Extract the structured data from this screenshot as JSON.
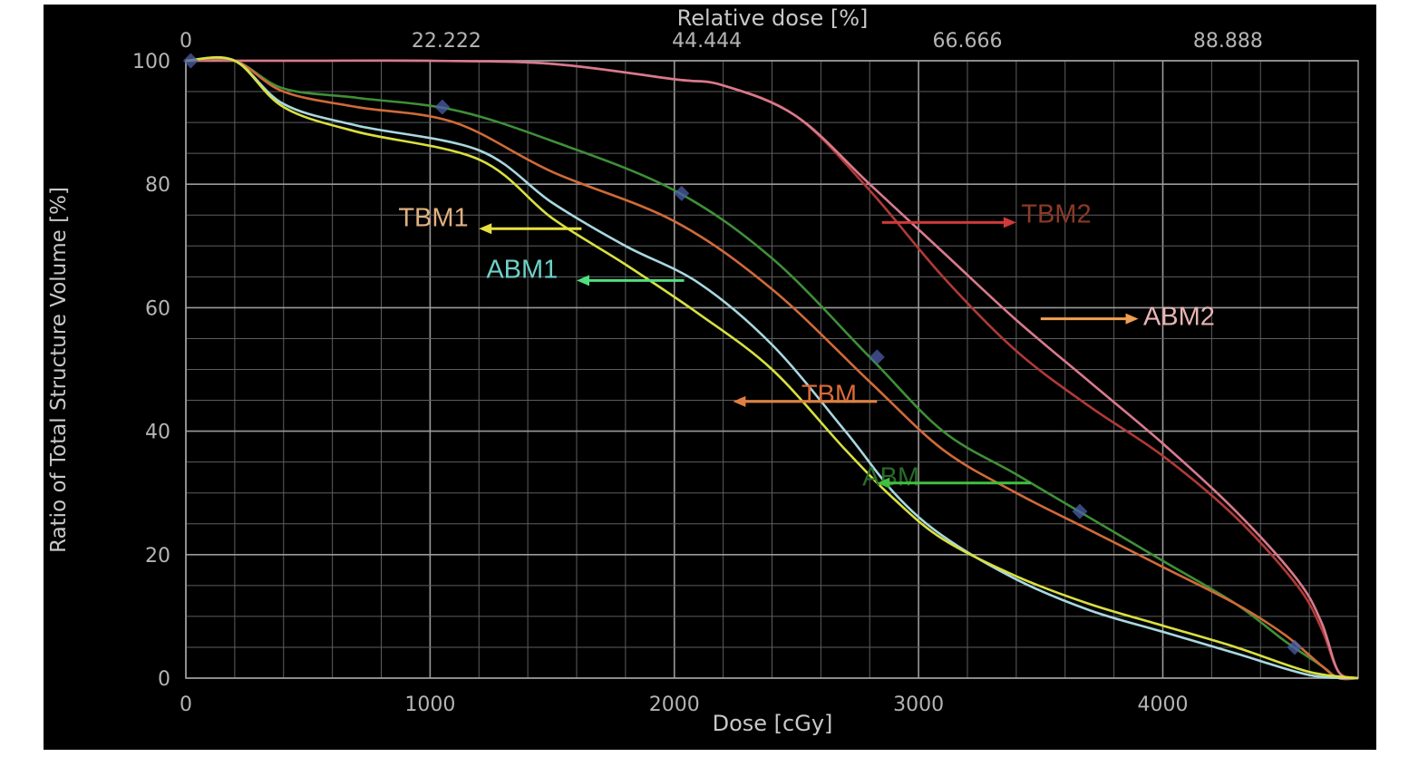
{
  "chart_data": {
    "type": "line",
    "title": "",
    "xlabel": "Dose [cGy]",
    "ylabel": "Ratio of Total Structure Volume [%]",
    "x2label": "Relative dose [%]",
    "xlim": [
      0,
      4800
    ],
    "ylim": [
      0,
      100
    ],
    "x_ticks": [
      0,
      1000,
      2000,
      3000,
      4000
    ],
    "y_ticks": [
      0,
      20,
      40,
      60,
      80,
      100
    ],
    "x2_ticks": [
      {
        "value": 0,
        "label": "0"
      },
      {
        "value": 1066.7,
        "label": "22.222"
      },
      {
        "value": 2133.3,
        "label": "44.444"
      },
      {
        "value": 3200,
        "label": "66.666"
      },
      {
        "value": 4266.7,
        "label": "88.888"
      }
    ],
    "grid": true,
    "background": "#000000",
    "series": [
      {
        "name": "TBM2",
        "color": "#b03a36",
        "x": [
          0,
          200,
          500,
          1000,
          1500,
          2000,
          2200,
          2500,
          2800,
          3100,
          3400,
          3700,
          4000,
          4300,
          4550,
          4650,
          4720,
          4800
        ],
        "y": [
          100,
          100,
          100,
          100,
          99.5,
          97,
          96,
          91,
          79,
          65,
          53,
          44,
          36,
          26,
          15,
          8,
          1,
          0
        ]
      },
      {
        "name": "ABM2",
        "color": "#d87a8e",
        "x": [
          0,
          200,
          500,
          1000,
          1500,
          2000,
          2200,
          2500,
          2800,
          3100,
          3400,
          3700,
          4000,
          4300,
          4550,
          4650,
          4720,
          4800
        ],
        "y": [
          100,
          100,
          100,
          100,
          99.5,
          97,
          96,
          91,
          80,
          69,
          58,
          48,
          38,
          27,
          16,
          9,
          1,
          0
        ]
      },
      {
        "name": "ABM",
        "color": "#3f8f38",
        "x": [
          0,
          200,
          400,
          700,
          1100,
          1500,
          2000,
          2400,
          2800,
          3100,
          3400,
          3700,
          4000,
          4300,
          4500,
          4650,
          4720,
          4800
        ],
        "y": [
          100,
          100,
          95.5,
          94,
          92,
          87,
          79,
          68,
          52,
          40,
          33,
          26,
          19,
          12,
          6,
          2,
          0,
          0
        ]
      },
      {
        "name": "TBM",
        "color": "#d06a38",
        "x": [
          0,
          200,
          400,
          700,
          1100,
          1500,
          2000,
          2400,
          2800,
          3100,
          3400,
          3700,
          4000,
          4300,
          4500,
          4650,
          4720,
          4800
        ],
        "y": [
          100,
          100,
          95,
          92.5,
          90,
          82,
          74,
          63,
          48,
          37,
          30,
          24,
          18,
          12,
          7,
          2,
          0,
          0
        ]
      },
      {
        "name": "ABM1",
        "color": "#a8d8e0",
        "x": [
          0,
          200,
          400,
          700,
          1200,
          1500,
          1800,
          2100,
          2400,
          2700,
          2900,
          3100,
          3400,
          3700,
          4000,
          4300,
          4600,
          4800
        ],
        "y": [
          100,
          100,
          93,
          89.5,
          85.5,
          77,
          70,
          64,
          54,
          40,
          30,
          23,
          16,
          11,
          7.5,
          4,
          0.5,
          0
        ]
      },
      {
        "name": "TBM1",
        "color": "#d8e040",
        "x": [
          0,
          200,
          400,
          700,
          1200,
          1500,
          1800,
          2100,
          2400,
          2700,
          2900,
          3100,
          3400,
          3700,
          4000,
          4300,
          4600,
          4800
        ],
        "y": [
          100,
          100,
          92.5,
          88.5,
          84,
          74.5,
          67,
          59,
          50,
          37,
          29,
          22.5,
          16.5,
          12,
          8.5,
          5,
          1,
          0
        ]
      }
    ],
    "markers": [
      {
        "x": 20,
        "y": 100
      },
      {
        "x": 1050,
        "y": 92.5
      },
      {
        "x": 2030,
        "y": 78.5
      },
      {
        "x": 2830,
        "y": 52
      },
      {
        "x": 3660,
        "y": 27
      },
      {
        "x": 4540,
        "y": 5
      }
    ],
    "annotations": [
      {
        "label": "TBM1",
        "text_color": "#e0b080",
        "arrow_color": "#e8e040",
        "label_x": 870,
        "label_y": 73.2,
        "arrow_from_x": 1620,
        "arrow_to_x": 1200,
        "arrow_y": 72.8
      },
      {
        "label": "ABM1",
        "text_color": "#6ed0c8",
        "arrow_color": "#50e080",
        "label_x": 1230,
        "label_y": 64.8,
        "arrow_from_x": 2040,
        "arrow_to_x": 1600,
        "arrow_y": 64.4
      },
      {
        "label": "TBM2",
        "text_color": "#8a3a26",
        "arrow_color": "#d03a3a",
        "label_x": 3420,
        "label_y": 73.8,
        "arrow_from_x": 2850,
        "arrow_to_x": 3400,
        "arrow_y": 73.8
      },
      {
        "label": "ABM2",
        "text_color": "#e8b4b4",
        "arrow_color": "#f0a050",
        "label_x": 3920,
        "label_y": 57.2,
        "arrow_from_x": 3500,
        "arrow_to_x": 3900,
        "arrow_y": 58.2
      },
      {
        "label": "TBM",
        "text_color": "#d86a3a",
        "arrow_color": "#e08040",
        "label_x": 2520,
        "label_y": 44.6,
        "arrow_from_x": 2830,
        "arrow_to_x": 2240,
        "arrow_y": 44.8
      },
      {
        "label": "ABM",
        "text_color": "#2a6a2a",
        "arrow_color": "#40c040",
        "label_x": 2770,
        "label_y": 31.2,
        "arrow_from_x": 3460,
        "arrow_to_x": 2830,
        "arrow_y": 31.6
      }
    ]
  }
}
